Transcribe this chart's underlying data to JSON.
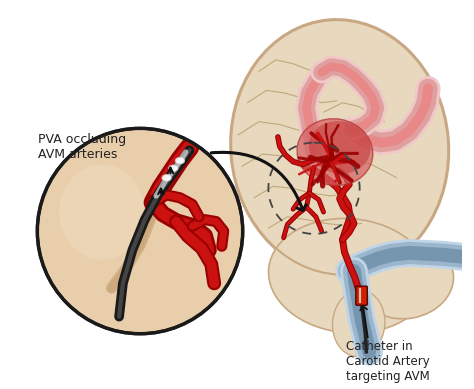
{
  "bg_color": "#ffffff",
  "brain_color": "#e8d8be",
  "brain_outline_color": "#c8a882",
  "brain_fold_color": "#c0a878",
  "artery_red": "#cc1111",
  "artery_dark_red": "#990000",
  "artery_light_red": "#e88888",
  "artery_pink": "#e0a0a0",
  "artery_pale_pink": "#f0c8c8",
  "catheter_blue": "#9ab5cc",
  "catheter_blue_dark": "#7090aa",
  "catheter_blue_light": "#c0d5e5",
  "circle_inset_color": "#1a1a1a",
  "arrow_color": "#111111",
  "text_color": "#222222",
  "label_pva": "PVA occluding\nAVM arteries",
  "label_catheter": "Catheter in\nCarotid Artery\ntargeting AVM",
  "figsize": [
    4.74,
    3.89
  ],
  "dpi": 100
}
